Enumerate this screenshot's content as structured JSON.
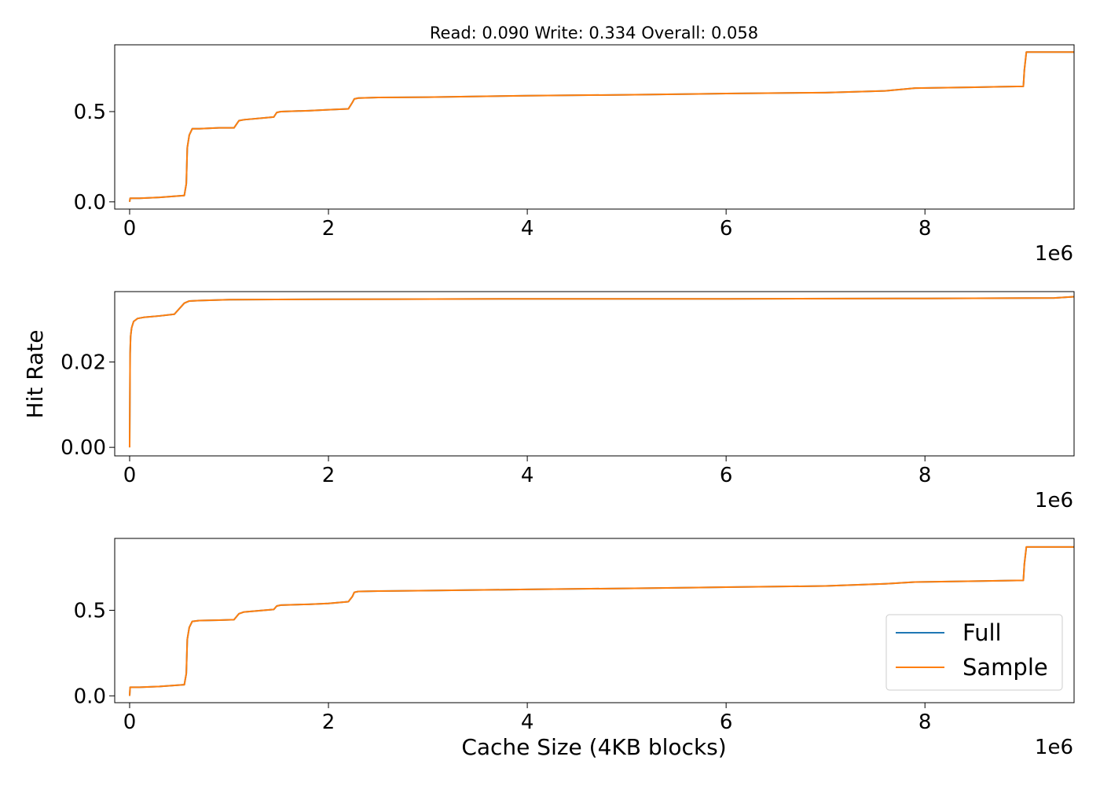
{
  "figure": {
    "title": "Read: 0.090 Write: 0.334 Overall: 0.058",
    "ylabel": "Hit Rate",
    "xlabel": "Cache Size (4KB blocks)",
    "legend": {
      "placement": "lower-right",
      "entries": [
        "Full",
        "Sample"
      ]
    },
    "colors": {
      "Full": "#1f77b4",
      "Sample": "#ff7f0e",
      "axes": "#000000",
      "background": "#ffffff"
    }
  },
  "chart_data": [
    {
      "type": "line",
      "title": "Read: 0.090 Write: 0.334 Overall: 0.058",
      "xlabel": "",
      "ylabel": "",
      "x_multiplier_label": "1e6",
      "xlim": [
        -0.15,
        9.5
      ],
      "ylim": [
        -0.04,
        0.87
      ],
      "xticks": [
        0,
        2,
        4,
        6,
        8
      ],
      "xtick_labels": [
        "0",
        "2",
        "4",
        "6",
        "8"
      ],
      "yticks": [
        0.0,
        0.5
      ],
      "ytick_labels": [
        "0.0",
        "0.5"
      ],
      "grid": false,
      "series": [
        {
          "name": "Full",
          "x": [
            0,
            0.005,
            0.1,
            0.3,
            0.55,
            0.57,
            0.58,
            0.6,
            0.63,
            0.7,
            0.9,
            1.05,
            1.1,
            1.15,
            1.45,
            1.48,
            1.52,
            1.8,
            2.0,
            2.2,
            2.24,
            2.26,
            2.3,
            2.5,
            3.0,
            4.0,
            5.0,
            6.0,
            7.0,
            7.6,
            7.9,
            8.5,
            8.99,
            9.0,
            9.02,
            9.5
          ],
          "y": [
            0.0,
            0.02,
            0.02,
            0.025,
            0.035,
            0.1,
            0.3,
            0.37,
            0.405,
            0.405,
            0.41,
            0.41,
            0.45,
            0.455,
            0.47,
            0.495,
            0.5,
            0.505,
            0.51,
            0.515,
            0.55,
            0.57,
            0.575,
            0.578,
            0.58,
            0.588,
            0.593,
            0.6,
            0.605,
            0.615,
            0.63,
            0.635,
            0.64,
            0.73,
            0.83,
            0.83
          ]
        },
        {
          "name": "Sample",
          "x": [
            0,
            0.005,
            0.1,
            0.3,
            0.55,
            0.57,
            0.58,
            0.6,
            0.63,
            0.7,
            0.9,
            1.05,
            1.1,
            1.15,
            1.45,
            1.48,
            1.52,
            1.8,
            2.0,
            2.2,
            2.24,
            2.26,
            2.3,
            2.5,
            3.0,
            4.0,
            5.0,
            6.0,
            7.0,
            7.6,
            7.9,
            8.5,
            8.99,
            9.0,
            9.02,
            9.5
          ],
          "y": [
            0.0,
            0.02,
            0.02,
            0.025,
            0.035,
            0.1,
            0.3,
            0.37,
            0.405,
            0.405,
            0.41,
            0.41,
            0.45,
            0.455,
            0.47,
            0.495,
            0.5,
            0.505,
            0.51,
            0.515,
            0.55,
            0.57,
            0.575,
            0.578,
            0.58,
            0.588,
            0.593,
            0.6,
            0.605,
            0.615,
            0.63,
            0.635,
            0.64,
            0.73,
            0.83,
            0.83
          ]
        }
      ]
    },
    {
      "type": "line",
      "title": "",
      "xlabel": "",
      "ylabel": "Hit Rate",
      "x_multiplier_label": "1e6",
      "xlim": [
        -0.15,
        9.5
      ],
      "ylim": [
        -0.002,
        0.0365
      ],
      "xticks": [
        0,
        2,
        4,
        6,
        8
      ],
      "xtick_labels": [
        "0",
        "2",
        "4",
        "6",
        "8"
      ],
      "yticks": [
        0.0,
        0.02
      ],
      "ytick_labels": [
        "0.00",
        "0.02"
      ],
      "grid": false,
      "series": [
        {
          "name": "Full",
          "x": [
            0,
            0.005,
            0.01,
            0.02,
            0.04,
            0.08,
            0.15,
            0.3,
            0.45,
            0.5,
            0.55,
            0.6,
            0.7,
            1.0,
            2.0,
            4.0,
            6.0,
            8.0,
            9.3,
            9.5
          ],
          "y": [
            0.0,
            0.022,
            0.026,
            0.028,
            0.0295,
            0.0302,
            0.0305,
            0.0308,
            0.0312,
            0.0325,
            0.0338,
            0.0343,
            0.0344,
            0.0346,
            0.0347,
            0.0348,
            0.0348,
            0.0349,
            0.035,
            0.0353
          ]
        },
        {
          "name": "Sample",
          "x": [
            0,
            0.005,
            0.01,
            0.02,
            0.04,
            0.08,
            0.15,
            0.3,
            0.45,
            0.5,
            0.55,
            0.6,
            0.7,
            1.0,
            2.0,
            4.0,
            6.0,
            8.0,
            9.3,
            9.5
          ],
          "y": [
            0.0,
            0.022,
            0.026,
            0.028,
            0.0295,
            0.0302,
            0.0305,
            0.0308,
            0.0312,
            0.0325,
            0.0338,
            0.0343,
            0.0344,
            0.0346,
            0.0347,
            0.0348,
            0.0348,
            0.0349,
            0.035,
            0.0353
          ]
        }
      ]
    },
    {
      "type": "line",
      "title": "",
      "xlabel": "Cache Size (4KB blocks)",
      "ylabel": "",
      "x_multiplier_label": "1e6",
      "xlim": [
        -0.15,
        9.5
      ],
      "ylim": [
        -0.04,
        0.92
      ],
      "xticks": [
        0,
        2,
        4,
        6,
        8
      ],
      "xtick_labels": [
        "0",
        "2",
        "4",
        "6",
        "8"
      ],
      "yticks": [
        0.0,
        0.5
      ],
      "ytick_labels": [
        "0.0",
        "0.5"
      ],
      "grid": false,
      "legend": {
        "placement": "lower-right",
        "entries": [
          "Full",
          "Sample"
        ]
      },
      "series": [
        {
          "name": "Full",
          "x": [
            0,
            0.005,
            0.1,
            0.3,
            0.55,
            0.57,
            0.58,
            0.6,
            0.63,
            0.7,
            0.9,
            1.05,
            1.1,
            1.15,
            1.45,
            1.48,
            1.52,
            1.8,
            2.0,
            2.2,
            2.24,
            2.26,
            2.3,
            2.5,
            3.0,
            4.0,
            5.0,
            6.0,
            7.0,
            7.6,
            7.9,
            8.5,
            8.99,
            9.0,
            9.02,
            9.5
          ],
          "y": [
            0.0,
            0.05,
            0.05,
            0.055,
            0.065,
            0.13,
            0.33,
            0.4,
            0.435,
            0.44,
            0.442,
            0.445,
            0.48,
            0.49,
            0.505,
            0.525,
            0.53,
            0.535,
            0.54,
            0.55,
            0.58,
            0.605,
            0.61,
            0.612,
            0.615,
            0.622,
            0.628,
            0.635,
            0.642,
            0.655,
            0.665,
            0.67,
            0.675,
            0.77,
            0.87,
            0.87
          ]
        },
        {
          "name": "Sample",
          "x": [
            0,
            0.005,
            0.1,
            0.3,
            0.55,
            0.57,
            0.58,
            0.6,
            0.63,
            0.7,
            0.9,
            1.05,
            1.1,
            1.15,
            1.45,
            1.48,
            1.52,
            1.8,
            2.0,
            2.2,
            2.24,
            2.26,
            2.3,
            2.5,
            3.0,
            4.0,
            5.0,
            6.0,
            7.0,
            7.6,
            7.9,
            8.5,
            8.99,
            9.0,
            9.02,
            9.5
          ],
          "y": [
            0.0,
            0.05,
            0.05,
            0.055,
            0.065,
            0.13,
            0.33,
            0.4,
            0.435,
            0.44,
            0.442,
            0.445,
            0.48,
            0.49,
            0.505,
            0.525,
            0.53,
            0.535,
            0.54,
            0.55,
            0.58,
            0.605,
            0.61,
            0.612,
            0.615,
            0.622,
            0.628,
            0.635,
            0.642,
            0.655,
            0.665,
            0.67,
            0.675,
            0.77,
            0.87,
            0.87
          ]
        }
      ]
    }
  ]
}
